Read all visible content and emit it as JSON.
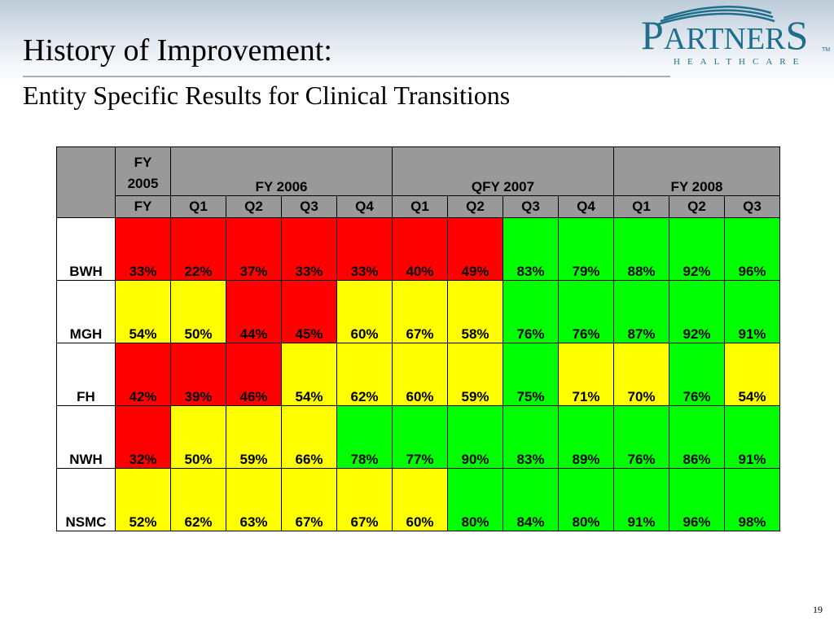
{
  "slide": {
    "title": "History of Improvement:",
    "subtitle": "Entity Specific Results for Clinical Transitions",
    "page_number": "19"
  },
  "logo": {
    "word_p": "P",
    "word_artner": "ARTNER",
    "word_s": "S",
    "tm": "TM",
    "sub": "HEALTHCARE",
    "color": "#1f6e8c"
  },
  "table": {
    "header_groups": {
      "fy2005_line1": "FY",
      "fy2005_line2": "2005",
      "fy2006": "FY 2006",
      "qfy2007": "QFY 2007",
      "fy2008": "FY 2008"
    },
    "subheaders": [
      "FY",
      "Q1",
      "Q2",
      "Q3",
      "Q4",
      "Q1",
      "Q2",
      "Q3",
      "Q4",
      "Q1",
      "Q2",
      "Q3"
    ],
    "colors": {
      "red": "#ff0000",
      "yellow": "#ffff00",
      "green": "#00ff00",
      "header": "#999999"
    },
    "rows": [
      {
        "label": "BWH",
        "values": [
          "33%",
          "22%",
          "37%",
          "33%",
          "33%",
          "40%",
          "49%",
          "83%",
          "79%",
          "88%",
          "92%",
          "96%"
        ],
        "status": [
          "red",
          "red",
          "red",
          "red",
          "red",
          "red",
          "red",
          "green",
          "green",
          "green",
          "green",
          "green"
        ]
      },
      {
        "label": "MGH",
        "values": [
          "54%",
          "50%",
          "44%",
          "45%",
          "60%",
          "67%",
          "58%",
          "76%",
          "76%",
          "87%",
          "92%",
          "91%"
        ],
        "status": [
          "yellow",
          "yellow",
          "red",
          "red",
          "yellow",
          "yellow",
          "yellow",
          "green",
          "green",
          "green",
          "green",
          "green"
        ]
      },
      {
        "label": "FH",
        "values": [
          "42%",
          "39%",
          "46%",
          "54%",
          "62%",
          "60%",
          "59%",
          "75%",
          "71%",
          "70%",
          "76%",
          "54%"
        ],
        "status": [
          "red",
          "red",
          "red",
          "yellow",
          "yellow",
          "yellow",
          "yellow",
          "green",
          "yellow",
          "yellow",
          "green",
          "yellow"
        ]
      },
      {
        "label": "NWH",
        "values": [
          "32%",
          "50%",
          "59%",
          "66%",
          "78%",
          "77%",
          "90%",
          "83%",
          "89%",
          "76%",
          "86%",
          "91%"
        ],
        "status": [
          "red",
          "yellow",
          "yellow",
          "yellow",
          "green",
          "green",
          "green",
          "green",
          "green",
          "green",
          "green",
          "green"
        ]
      },
      {
        "label": "NSMC",
        "values": [
          "52%",
          "62%",
          "63%",
          "67%",
          "67%",
          "60%",
          "80%",
          "84%",
          "80%",
          "91%",
          "96%",
          "98%"
        ],
        "status": [
          "yellow",
          "yellow",
          "yellow",
          "yellow",
          "yellow",
          "yellow",
          "green",
          "green",
          "green",
          "green",
          "green",
          "green"
        ]
      }
    ]
  }
}
